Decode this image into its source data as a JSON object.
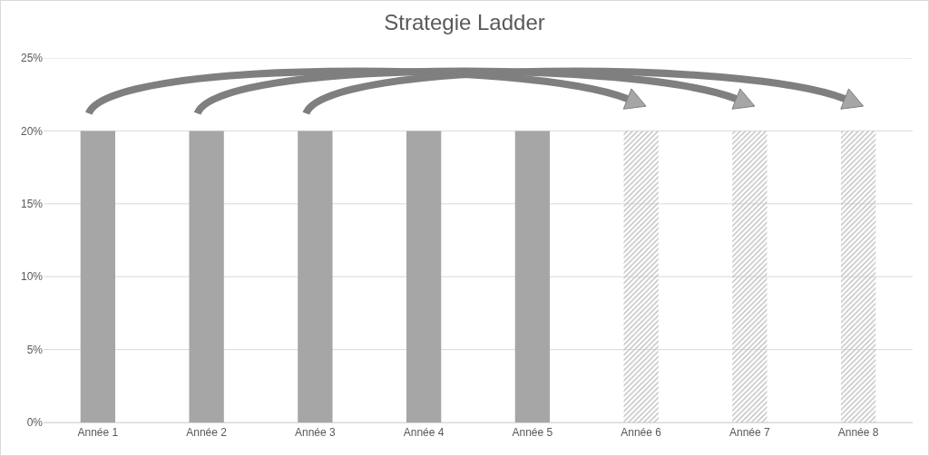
{
  "chart_data": {
    "type": "bar",
    "title": "Strategie Ladder",
    "categories": [
      "Année 1",
      "Année 2",
      "Année 3",
      "Année 4",
      "Année 5",
      "Année 6",
      "Année 7",
      "Année 8"
    ],
    "values": [
      20,
      20,
      20,
      20,
      20,
      20,
      20,
      20
    ],
    "colors": [
      "#a6a6a6",
      "#a6a6a6",
      "#a6a6a6",
      "#a6a6a6",
      "#a6a6a6",
      "#bfbfbf",
      "#bfbfbf",
      "#bfbfbf"
    ],
    "ylim": [
      0,
      25
    ],
    "yticks": [
      {
        "value": 0,
        "label": "0%"
      },
      {
        "value": 5,
        "label": "5%"
      },
      {
        "value": 10,
        "label": "10%"
      },
      {
        "value": 15,
        "label": "15%"
      },
      {
        "value": 20,
        "label": "20%"
      },
      {
        "value": 25,
        "label": "25%"
      }
    ],
    "grid": "y"
  }
}
